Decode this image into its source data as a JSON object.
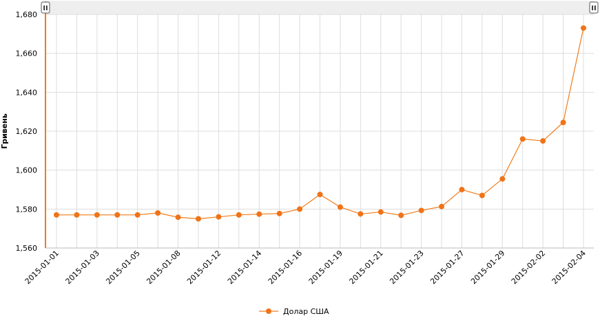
{
  "colors": {
    "series": "#f07b1a",
    "series_point": "#f07318",
    "grid": "#dddddd",
    "axis": "#bbbbbb",
    "scrollbar_track": "#eeeeee",
    "grip_fill": "#ffffff",
    "grip_border": "#555555"
  },
  "icons": {
    "left_handle": "drag-handle-icon",
    "right_handle": "drag-handle-icon"
  },
  "scrollbar": {
    "left_handle_glyph": "II",
    "right_handle_glyph": "II"
  },
  "chart_data": {
    "type": "line",
    "ylabel": "Гривень",
    "xlabel": "",
    "ylim": [
      1560,
      1680
    ],
    "yticks": [
      1560,
      1580,
      1600,
      1620,
      1640,
      1660,
      1680
    ],
    "ytick_labels": [
      "1,560",
      "1,580",
      "1,600",
      "1,620",
      "1,640",
      "1,660",
      "1,680"
    ],
    "grid": true,
    "legend_position": "bottom-center",
    "x": [
      "2015-01-01",
      "2015-01-02",
      "2015-01-03",
      "2015-01-04",
      "2015-01-05",
      "2015-01-06",
      "2015-01-08",
      "2015-01-09",
      "2015-01-12",
      "2015-01-13",
      "2015-01-14",
      "2015-01-15",
      "2015-01-16",
      "2015-01-17",
      "2015-01-19",
      "2015-01-20",
      "2015-01-21",
      "2015-01-22",
      "2015-01-23",
      "2015-01-26",
      "2015-01-27",
      "2015-01-28",
      "2015-01-29",
      "2015-01-30",
      "2015-02-02",
      "2015-02-03",
      "2015-02-04"
    ],
    "x_tick_labels": [
      "2015-01-01",
      "2015-01-03",
      "2015-01-05",
      "2015-01-08",
      "2015-01-12",
      "2015-01-14",
      "2015-01-16",
      "2015-01-19",
      "2015-01-21",
      "2015-01-23",
      "2015-01-27",
      "2015-01-29",
      "2015-02-02",
      "2015-02-04"
    ],
    "series": [
      {
        "name": "Долар США",
        "values": [
          1577,
          1577,
          1577,
          1577,
          1577,
          1578,
          1575.8,
          1575,
          1576,
          1577,
          1577.4,
          1577.7,
          1580,
          1587.5,
          1581,
          1577.5,
          1578.5,
          1576.8,
          1579.3,
          1581.3,
          1590,
          1587,
          1595.5,
          1616,
          1615,
          1624.5,
          1673
        ]
      }
    ]
  }
}
